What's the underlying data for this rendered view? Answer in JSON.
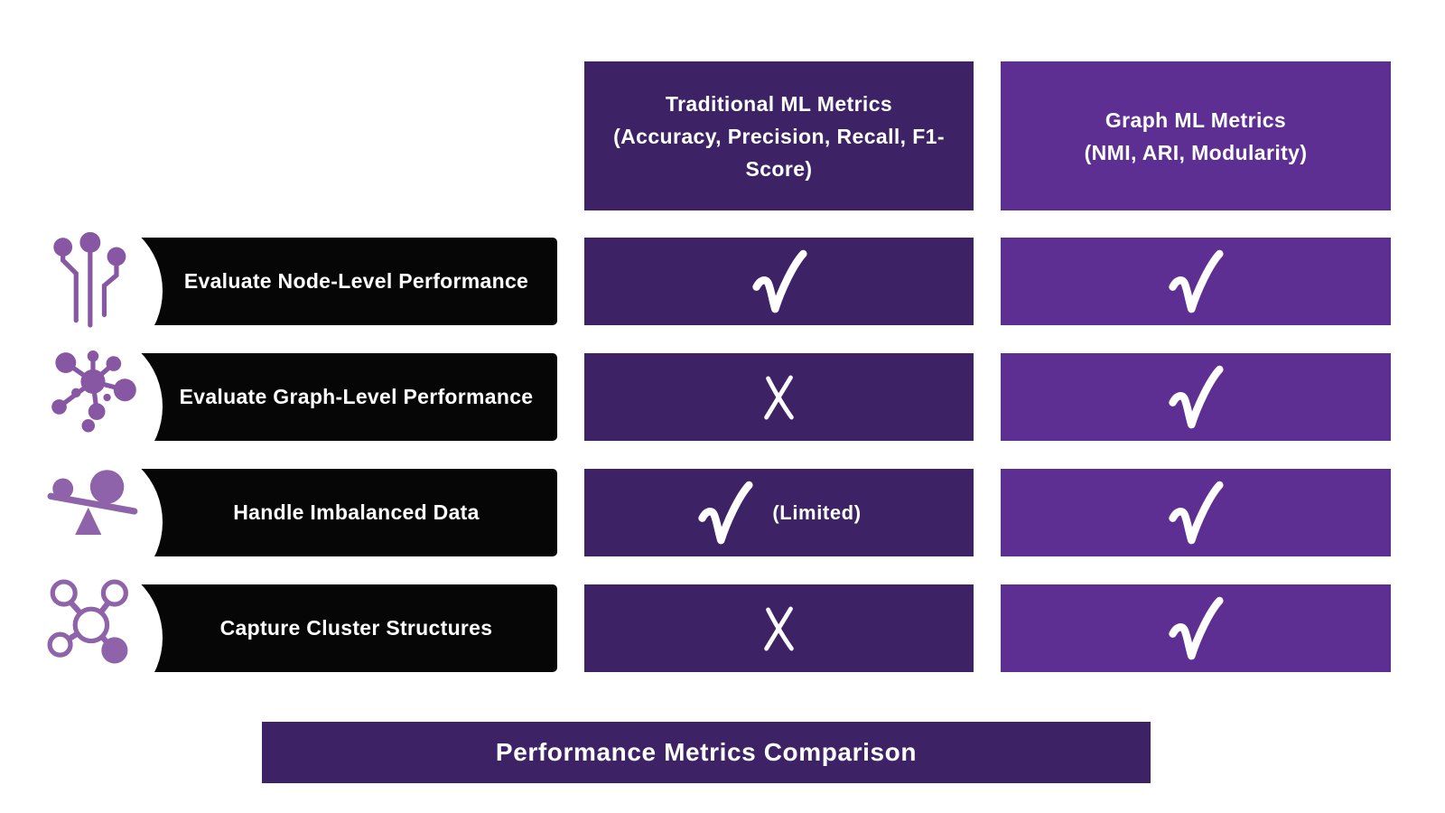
{
  "colors": {
    "dark_purple": "#3d2366",
    "light_purple": "#5d2f93",
    "row_bar_black": "#060606",
    "icon_purple": "#8857a4",
    "text_white": "#ffffff",
    "background": "#ffffff"
  },
  "columns": [
    {
      "id": "traditional",
      "title": "Traditional ML Metrics",
      "subtitle": "(Accuracy, Precision, Recall, F1-Score)",
      "color": "#3d2366"
    },
    {
      "id": "graph",
      "title": "Graph ML Metrics",
      "subtitle": "(NMI, ARI, Modularity)",
      "color": "#5d2f93"
    }
  ],
  "rows": [
    {
      "label": "Evaluate Node-Level Performance",
      "icon": "node-level-icon",
      "traditional": {
        "mark": "check",
        "note": ""
      },
      "graph": {
        "mark": "check",
        "note": ""
      }
    },
    {
      "label": "Evaluate Graph-Level Performance",
      "icon": "graph-network-icon",
      "traditional": {
        "mark": "cross",
        "note": ""
      },
      "graph": {
        "mark": "check",
        "note": ""
      }
    },
    {
      "label": "Handle Imbalanced Data",
      "icon": "imbalance-scale-icon",
      "traditional": {
        "mark": "check",
        "note": "(Limited)"
      },
      "graph": {
        "mark": "check",
        "note": ""
      }
    },
    {
      "label": "Capture Cluster Structures",
      "icon": "cluster-structure-icon",
      "traditional": {
        "mark": "cross",
        "note": ""
      },
      "graph": {
        "mark": "check",
        "note": ""
      }
    }
  ],
  "marks": {
    "check_icon": "check-mark-icon",
    "cross_icon": "cross-mark-icon"
  },
  "footer": {
    "title": "Performance Metrics Comparison"
  }
}
